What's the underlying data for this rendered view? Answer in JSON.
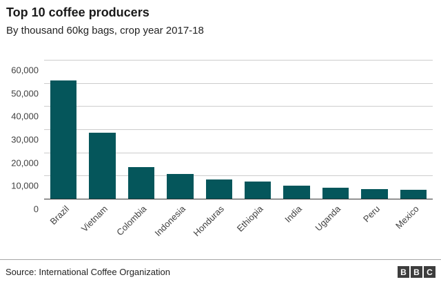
{
  "chart_data": {
    "type": "bar",
    "title": "Top 10 coffee producers",
    "subtitle": "By thousand 60kg bags, crop year 2017-18",
    "categories": [
      "Brazil",
      "Vietnam",
      "Colombia",
      "Indonesia",
      "Honduras",
      "Ethiopia",
      "India",
      "Uganda",
      "Peru",
      "Mexico"
    ],
    "values": [
      51500,
      28800,
      14000,
      10900,
      8500,
      7600,
      5900,
      5200,
      4600,
      4100
    ],
    "ylim": [
      0,
      60000
    ],
    "yticks": [
      0,
      10000,
      20000,
      30000,
      40000,
      50000,
      60000
    ],
    "ytick_labels": [
      "0",
      "10,000",
      "20,000",
      "30,000",
      "40,000",
      "50,000",
      "60,000"
    ],
    "bar_color": "#05565B",
    "grid": true,
    "legend": "none"
  },
  "footer": {
    "source": "Source: International Coffee Organization",
    "bbc_letters": [
      "B",
      "B",
      "C"
    ]
  }
}
